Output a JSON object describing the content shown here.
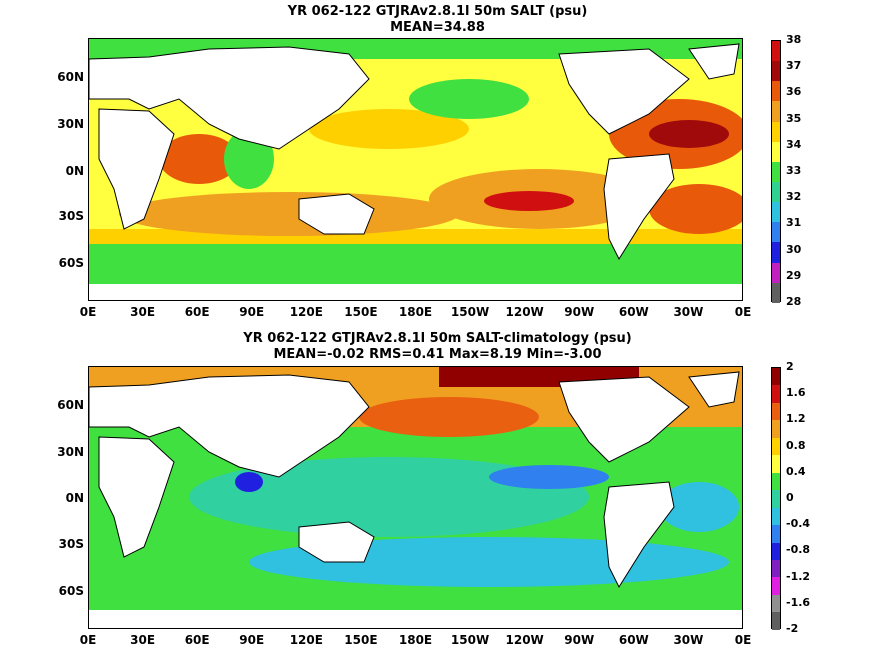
{
  "panel1": {
    "title_line1": "YR 062-122 GTJRAv2.8.1l 50m SALT (psu)",
    "title_line2": "MEAN=34.88",
    "colorbar": {
      "labels": [
        "38",
        "37",
        "36",
        "35",
        "34",
        "33",
        "32",
        "31",
        "30",
        "29",
        "28"
      ],
      "colors": [
        "#d01010",
        "#a00a0a",
        "#e85a0a",
        "#f0a020",
        "#ffd000",
        "#ffff40",
        "#40e040",
        "#30d090",
        "#30c0e0",
        "#3080f0",
        "#2020e0",
        "#c020c0",
        "#606060"
      ]
    }
  },
  "panel2": {
    "title_line1": "YR 062-122 GTJRAv2.8.1l 50m SALT-climatology (psu)",
    "title_line2": "MEAN=-0.02   RMS=0.41   Max=8.19   Min=-3.00",
    "colorbar": {
      "labels": [
        "2",
        "1.6",
        "1.2",
        "0.8",
        "0.4",
        "0",
        "-0.4",
        "-0.8",
        "-1.2",
        "-1.6",
        "-2"
      ],
      "colors": [
        "#900000",
        "#d01010",
        "#e86010",
        "#f0a020",
        "#ffd000",
        "#ffff40",
        "#40e040",
        "#30d0a0",
        "#30c0e0",
        "#3080f0",
        "#2020e0",
        "#8020c0",
        "#e020e0",
        "#909090",
        "#606060"
      ]
    }
  },
  "lat_labels": [
    "60N",
    "30N",
    "0N",
    "30S",
    "60S"
  ],
  "lon_labels": [
    "0E",
    "30E",
    "60E",
    "90E",
    "120E",
    "150E",
    "180E",
    "150W",
    "120W",
    "90W",
    "60W",
    "30W",
    "0E"
  ]
}
